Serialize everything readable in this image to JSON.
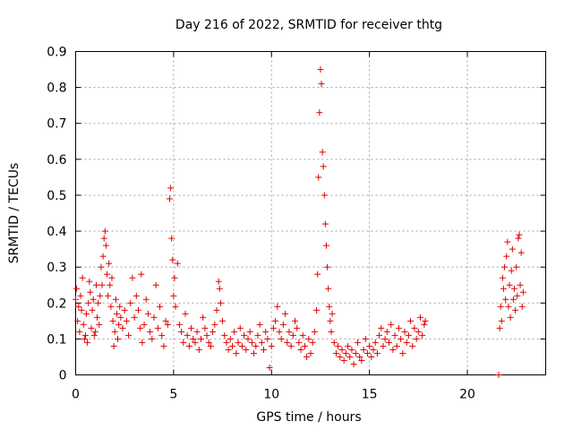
{
  "chart_data": {
    "type": "scatter",
    "title": "Day 216 of 2022, SRMTID for receiver thtg",
    "xlabel": "GPS time / hours",
    "ylabel": "SRMTID / TECUs",
    "xlim": [
      0,
      24
    ],
    "ylim": [
      0,
      0.9
    ],
    "xticks": [
      0,
      5,
      10,
      15,
      20
    ],
    "xtick_labels": [
      "0",
      "5",
      "10",
      "15",
      "20"
    ],
    "yticks": [
      0,
      0.1,
      0.2,
      0.3,
      0.4,
      0.5,
      0.6,
      0.7,
      0.8,
      0.9
    ],
    "ytick_labels": [
      "0",
      "0.1",
      "0.2",
      "0.3",
      "0.4",
      "0.5",
      "0.6",
      "0.7",
      "0.8",
      "0.9"
    ],
    "grid": true,
    "marker": "+",
    "color": "#e00000",
    "series": [
      {
        "name": "SRMTID",
        "x": [
          0.0,
          0.05,
          0.1,
          0.15,
          0.2,
          0.25,
          0.3,
          0.35,
          0.4,
          0.45,
          0.5,
          0.55,
          0.6,
          0.65,
          0.7,
          0.75,
          0.8,
          0.85,
          0.9,
          0.95,
          1.0,
          1.05,
          1.1,
          1.15,
          1.2,
          1.25,
          1.3,
          1.35,
          1.4,
          1.45,
          1.5,
          1.55,
          1.6,
          1.65,
          1.7,
          1.75,
          1.8,
          1.85,
          1.9,
          1.95,
          2.0,
          2.05,
          2.1,
          2.15,
          2.2,
          2.25,
          2.3,
          2.4,
          2.5,
          2.6,
          2.7,
          2.8,
          2.9,
          3.0,
          3.1,
          3.2,
          3.3,
          3.35,
          3.4,
          3.5,
          3.6,
          3.7,
          3.8,
          3.9,
          4.0,
          4.1,
          4.2,
          4.3,
          4.4,
          4.5,
          4.6,
          4.7,
          4.8,
          4.85,
          4.9,
          4.95,
          5.0,
          5.05,
          5.1,
          5.2,
          5.3,
          5.4,
          5.5,
          5.6,
          5.7,
          5.8,
          5.9,
          6.0,
          6.1,
          6.2,
          6.3,
          6.4,
          6.5,
          6.6,
          6.7,
          6.8,
          6.9,
          7.0,
          7.1,
          7.2,
          7.3,
          7.35,
          7.4,
          7.5,
          7.6,
          7.7,
          7.8,
          7.9,
          8.0,
          8.1,
          8.2,
          8.3,
          8.4,
          8.5,
          8.6,
          8.7,
          8.8,
          8.9,
          9.0,
          9.1,
          9.2,
          9.3,
          9.4,
          9.5,
          9.6,
          9.7,
          9.8,
          9.9,
          10.0,
          10.1,
          10.2,
          10.3,
          10.4,
          10.5,
          10.6,
          10.7,
          10.8,
          10.9,
          11.0,
          11.1,
          11.2,
          11.3,
          11.4,
          11.5,
          11.6,
          11.7,
          11.8,
          11.9,
          12.0,
          12.1,
          12.2,
          12.3,
          12.35,
          12.4,
          12.45,
          12.5,
          12.55,
          12.6,
          12.65,
          12.7,
          12.75,
          12.8,
          12.85,
          12.9,
          12.95,
          13.0,
          13.05,
          13.1,
          13.2,
          13.3,
          13.4,
          13.5,
          13.6,
          13.7,
          13.8,
          13.9,
          14.0,
          14.1,
          14.2,
          14.3,
          14.4,
          14.5,
          14.6,
          14.7,
          14.8,
          14.9,
          15.0,
          15.1,
          15.2,
          15.3,
          15.4,
          15.5,
          15.6,
          15.7,
          15.8,
          15.9,
          16.0,
          16.1,
          16.2,
          16.3,
          16.4,
          16.5,
          16.6,
          16.7,
          16.8,
          16.9,
          17.0,
          17.1,
          17.2,
          17.3,
          17.4,
          17.5,
          17.6,
          17.7,
          17.8,
          17.85,
          21.6,
          21.65,
          21.7,
          21.75,
          21.8,
          21.85,
          21.9,
          21.95,
          22.0,
          22.05,
          22.1,
          22.15,
          22.2,
          22.25,
          22.3,
          22.35,
          22.4,
          22.45,
          22.5,
          22.55,
          22.6,
          22.65,
          22.7,
          22.75,
          22.8,
          22.85
        ],
        "y": [
          0.21,
          0.24,
          0.15,
          0.19,
          0.12,
          0.22,
          0.18,
          0.27,
          0.14,
          0.1,
          0.11,
          0.17,
          0.09,
          0.2,
          0.26,
          0.23,
          0.13,
          0.18,
          0.21,
          0.11,
          0.12,
          0.25,
          0.16,
          0.2,
          0.14,
          0.22,
          0.3,
          0.25,
          0.33,
          0.38,
          0.4,
          0.36,
          0.28,
          0.22,
          0.31,
          0.25,
          0.19,
          0.27,
          0.15,
          0.08,
          0.12,
          0.21,
          0.17,
          0.1,
          0.14,
          0.19,
          0.16,
          0.13,
          0.18,
          0.15,
          0.11,
          0.2,
          0.27,
          0.16,
          0.22,
          0.18,
          0.13,
          0.28,
          0.09,
          0.14,
          0.21,
          0.17,
          0.12,
          0.1,
          0.16,
          0.25,
          0.13,
          0.19,
          0.11,
          0.08,
          0.15,
          0.14,
          0.49,
          0.52,
          0.38,
          0.32,
          0.22,
          0.27,
          0.19,
          0.31,
          0.14,
          0.12,
          0.09,
          0.17,
          0.11,
          0.08,
          0.13,
          0.1,
          0.09,
          0.12,
          0.07,
          0.1,
          0.16,
          0.13,
          0.11,
          0.09,
          0.08,
          0.12,
          0.14,
          0.18,
          0.26,
          0.24,
          0.2,
          0.15,
          0.11,
          0.09,
          0.07,
          0.1,
          0.08,
          0.12,
          0.06,
          0.09,
          0.13,
          0.08,
          0.11,
          0.07,
          0.1,
          0.12,
          0.09,
          0.06,
          0.08,
          0.11,
          0.14,
          0.09,
          0.07,
          0.12,
          0.1,
          0.02,
          0.08,
          0.13,
          0.15,
          0.19,
          0.12,
          0.1,
          0.14,
          0.17,
          0.09,
          0.12,
          0.08,
          0.11,
          0.15,
          0.13,
          0.09,
          0.07,
          0.11,
          0.08,
          0.05,
          0.1,
          0.06,
          0.09,
          0.12,
          0.18,
          0.28,
          0.55,
          0.73,
          0.85,
          0.81,
          0.62,
          0.58,
          0.5,
          0.42,
          0.36,
          0.3,
          0.24,
          0.19,
          0.15,
          0.12,
          0.17,
          0.09,
          0.06,
          0.08,
          0.05,
          0.07,
          0.04,
          0.06,
          0.08,
          0.05,
          0.07,
          0.03,
          0.06,
          0.09,
          0.05,
          0.04,
          0.07,
          0.1,
          0.06,
          0.08,
          0.05,
          0.07,
          0.09,
          0.06,
          0.11,
          0.13,
          0.08,
          0.1,
          0.12,
          0.09,
          0.14,
          0.07,
          0.11,
          0.08,
          0.13,
          0.1,
          0.06,
          0.12,
          0.09,
          0.11,
          0.15,
          0.08,
          0.13,
          0.1,
          0.12,
          0.16,
          0.11,
          0.14,
          0.15,
          0.0,
          0.13,
          0.19,
          0.15,
          0.27,
          0.24,
          0.3,
          0.21,
          0.33,
          0.37,
          0.19,
          0.25,
          0.16,
          0.29,
          0.35,
          0.21,
          0.24,
          0.18,
          0.3,
          0.22,
          0.38,
          0.39,
          0.25,
          0.34,
          0.19,
          0.23
        ]
      }
    ]
  }
}
